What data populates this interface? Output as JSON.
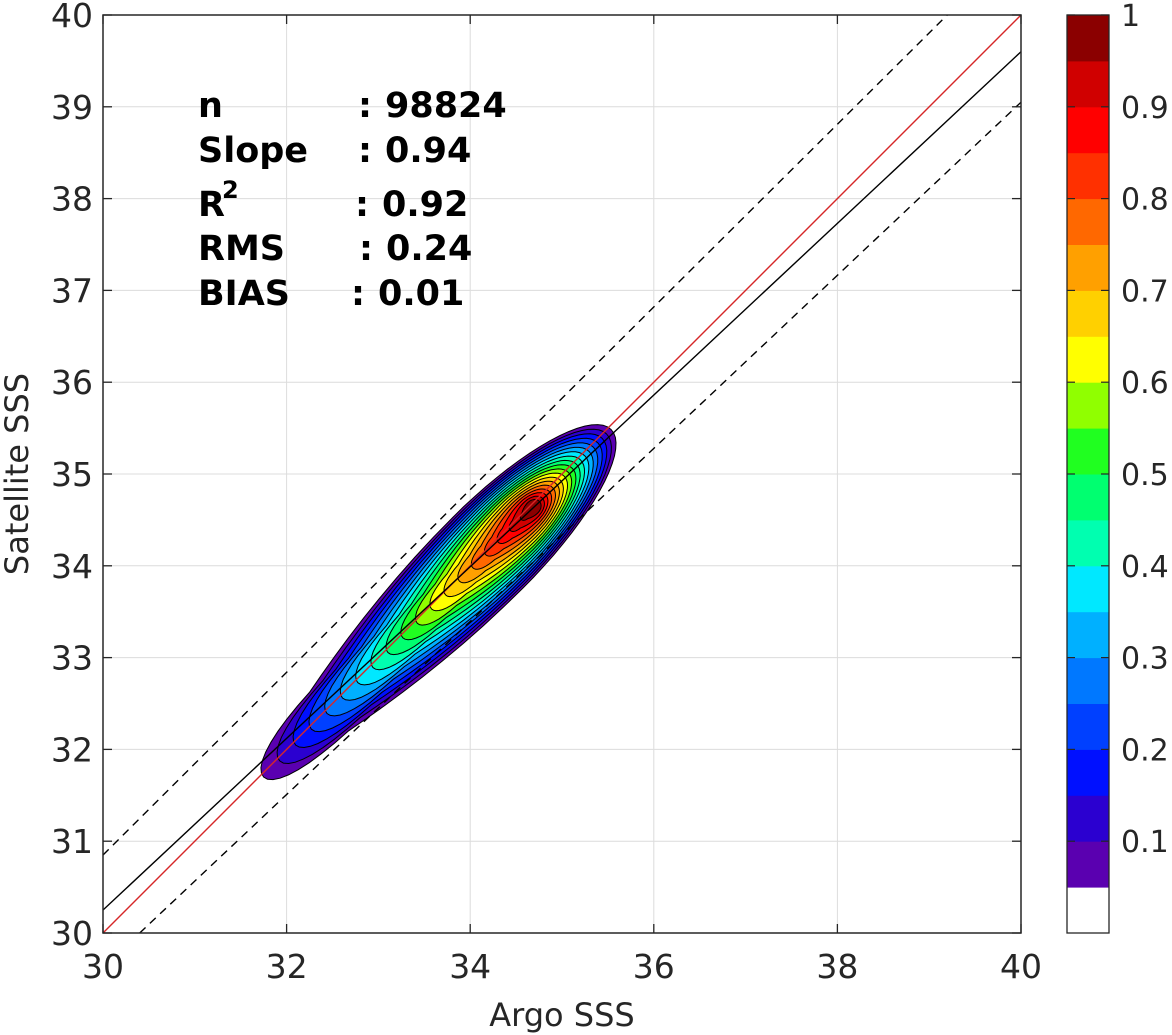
{
  "chart_data": {
    "type": "contourf",
    "title": "",
    "xlabel": "Argo SSS",
    "ylabel": "Satellite SSS",
    "xlim": [
      30,
      40
    ],
    "ylim": [
      30,
      40
    ],
    "xticks": [
      "30",
      "32",
      "34",
      "36",
      "38",
      "40"
    ],
    "yticks": [
      "30",
      "31",
      "32",
      "33",
      "34",
      "35",
      "36",
      "37",
      "38",
      "39",
      "40"
    ],
    "grid": true,
    "stats": [
      {
        "key": "n",
        "sep": ":",
        "value": "98824"
      },
      {
        "key": "Slope",
        "sep": ":",
        "value": "0.94"
      },
      {
        "key": "R",
        "sup": "2",
        "sep": ":",
        "value": "0.92"
      },
      {
        "key": "RMS",
        "sep": ":",
        "value": "0.24"
      },
      {
        "key": "BIAS",
        "sep": ":",
        "value": "0.01"
      }
    ],
    "lines": [
      {
        "kind": "one-to-one",
        "color": "#d62728",
        "dash": "solid",
        "points": [
          [
            30,
            30
          ],
          [
            40,
            40
          ]
        ]
      },
      {
        "kind": "regression",
        "color": "#000000",
        "dash": "solid",
        "points": [
          [
            30,
            30.25
          ],
          [
            40,
            39.6
          ]
        ]
      },
      {
        "kind": "upper-bound",
        "color": "#000000",
        "dash": "dashed",
        "points": [
          [
            30,
            30.85
          ],
          [
            40,
            40.8
          ]
        ]
      },
      {
        "kind": "lower-bound",
        "color": "#000000",
        "dash": "dashed",
        "points": [
          [
            30.4,
            30
          ],
          [
            40,
            39.05
          ]
        ]
      }
    ],
    "density": {
      "center": [
        34.7,
        34.65
      ],
      "peak": 1.0,
      "levels": [
        0.05,
        0.1,
        0.15,
        0.2,
        0.25,
        0.3,
        0.35,
        0.4,
        0.45,
        0.5,
        0.55,
        0.6,
        0.65,
        0.7,
        0.75,
        0.8,
        0.85,
        0.9,
        0.95
      ]
    },
    "colorbar": {
      "range": [
        0,
        1
      ],
      "ticks": [
        "0.1",
        "0.2",
        "0.3",
        "0.4",
        "0.5",
        "0.6",
        "0.7",
        "0.8",
        "0.9",
        "1"
      ],
      "tick_values": [
        0.1,
        0.2,
        0.3,
        0.4,
        0.5,
        0.6,
        0.7,
        0.8,
        0.9,
        1.0
      ],
      "colors": [
        "#ffffff",
        "#5a00b0",
        "#2b00d0",
        "#0010ff",
        "#0040ff",
        "#0078ff",
        "#00b0ff",
        "#00e8ff",
        "#00ffb0",
        "#00ff70",
        "#20ff20",
        "#90ff00",
        "#ffff00",
        "#ffd000",
        "#ffa000",
        "#ff6800",
        "#ff3000",
        "#ff0000",
        "#d00000",
        "#8b0000"
      ]
    }
  }
}
